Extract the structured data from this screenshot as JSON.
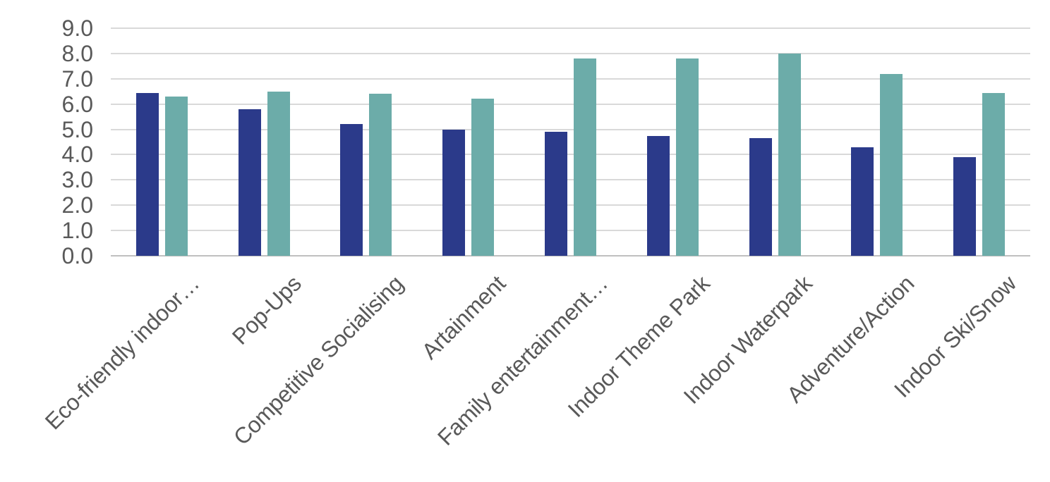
{
  "chart_data": {
    "type": "bar",
    "title": "",
    "categories": [
      "Eco-friendly indoor…",
      "Pop-Ups",
      "Competitive Socialising",
      "Artainment",
      "Family entertainment…",
      "Indoor Theme Park",
      "Indoor Waterpark",
      "Adventure/Action",
      "Indoor Ski/Snow"
    ],
    "series": [
      {
        "name": "navy-series",
        "color": "#2B3A8A",
        "values": [
          6.45,
          5.8,
          5.2,
          5.0,
          4.9,
          4.75,
          4.65,
          4.3,
          3.9
        ]
      },
      {
        "name": "teal-series",
        "color": "#6CACA9",
        "values": [
          6.3,
          6.5,
          6.4,
          6.2,
          7.8,
          7.8,
          8.0,
          7.2,
          6.45
        ]
      }
    ],
    "xlabel": "",
    "ylabel": "",
    "ylim": [
      0,
      9
    ],
    "ytick_step": 1,
    "ytick_labels": [
      "0.0",
      "1.0",
      "2.0",
      "3.0",
      "4.0",
      "5.0",
      "6.0",
      "7.0",
      "8.0",
      "9.0"
    ],
    "grid": true,
    "legend": "none",
    "colors": {
      "grid": "#D9D9D9",
      "axis_line": "#C0C0C0",
      "tick_text": "#595959",
      "background": "#FFFFFF"
    }
  }
}
